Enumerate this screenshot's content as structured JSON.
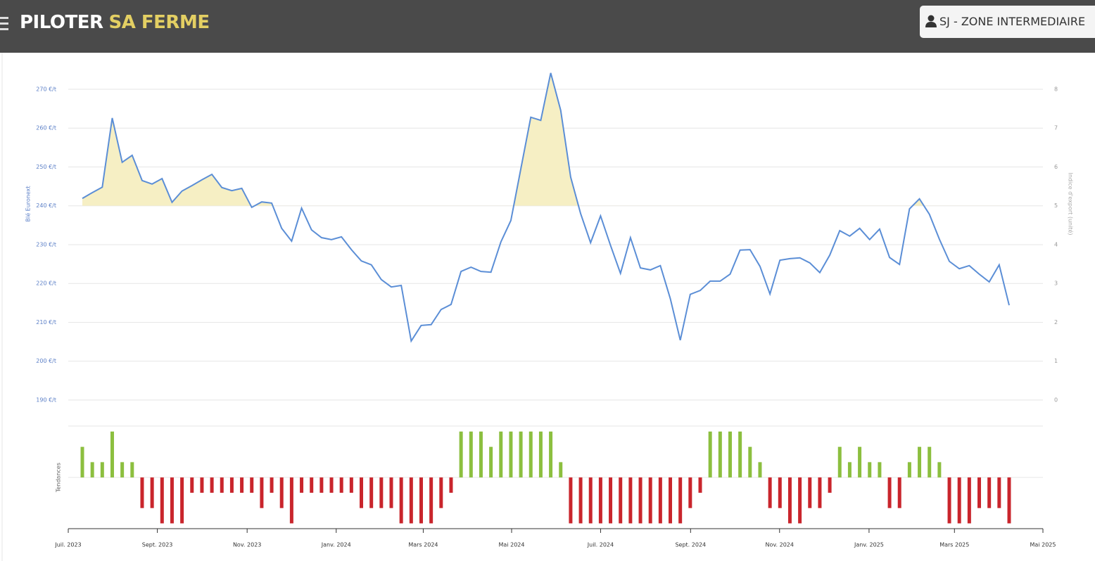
{
  "header": {
    "brand_main": "PILOTER",
    "brand_accent": "SA FERME",
    "user_zone": "SJ - ZONE INTERMEDIAIRE"
  },
  "chart_data": [
    {
      "type": "line",
      "y_label": "Blé Euronext",
      "y2_label": "Indice d'export (unité)",
      "color": "#5b8ed6",
      "fill_above": 240,
      "fill_color": "#f6efc4",
      "grid": true,
      "x": [
        0,
        1,
        2,
        3,
        4,
        5,
        6,
        7,
        8,
        9,
        10,
        11,
        12,
        13,
        14,
        15,
        16,
        17,
        18,
        19,
        20,
        21,
        22,
        23,
        24,
        25,
        26,
        27,
        28,
        29,
        30,
        31,
        32,
        33,
        34,
        35,
        36,
        37,
        38,
        39,
        40,
        41,
        42,
        43,
        44,
        45,
        46,
        47,
        48,
        49,
        50,
        51,
        52,
        53,
        54,
        55,
        56,
        57,
        58,
        59,
        60,
        61,
        62,
        63,
        64,
        65,
        66,
        67,
        68,
        69,
        70,
        71,
        72,
        73,
        74,
        75,
        76,
        77,
        78,
        79,
        80,
        81,
        82,
        83,
        84,
        85,
        86,
        87,
        88,
        89,
        90,
        91,
        92,
        93
      ],
      "values": [
        241.9,
        243.4,
        244.8,
        262.6,
        251.2,
        253.0,
        246.5,
        245.6,
        247.0,
        240.9,
        243.8,
        245.2,
        246.7,
        248.1,
        244.7,
        243.9,
        244.5,
        239.6,
        241.0,
        240.7,
        234.2,
        230.9,
        239.4,
        233.8,
        231.8,
        231.3,
        232.0,
        228.7,
        225.8,
        224.8,
        221.0,
        219.1,
        219.5,
        205.2,
        209.2,
        209.4,
        213.3,
        214.6,
        223.1,
        224.2,
        223.1,
        222.9,
        230.7,
        236.2,
        249.5,
        262.8,
        262.0,
        274.2,
        264.6,
        247.4,
        238.0,
        230.5,
        237.4,
        229.8,
        222.6,
        231.8,
        224.0,
        223.5,
        224.6,
        216.1,
        205.4,
        217.2,
        218.2,
        220.6,
        220.6,
        222.4,
        228.6,
        228.7,
        224.4,
        217.3,
        226.0,
        226.4,
        226.6,
        225.3,
        222.8,
        227.3,
        233.6,
        232.2,
        234.2,
        231.3,
        234.0,
        226.7,
        224.9,
        239.2,
        241.8,
        237.8,
        231.4,
        225.7,
        223.8,
        224.6,
        222.4,
        220.4,
        224.8,
        214.4
      ],
      "xlim": [
        -0.35,
        95.5
      ],
      "ylim": [
        190,
        277
      ],
      "yticks": [
        {
          "value": 190,
          "label": "190 €/t"
        },
        {
          "value": 200,
          "label": "200 €/t"
        },
        {
          "value": 210,
          "label": "210 €/t"
        },
        {
          "value": 220,
          "label": "220 €/t"
        },
        {
          "value": 230,
          "label": "230 €/t"
        },
        {
          "value": 240,
          "label": "240 €/t"
        },
        {
          "value": 250,
          "label": "250 €/t"
        },
        {
          "value": 260,
          "label": "260 €/t"
        },
        {
          "value": 270,
          "label": "270 €/t"
        }
      ],
      "y2lim": [
        0,
        8.7
      ],
      "y2ticks": [
        0,
        1,
        2,
        3,
        4,
        5,
        6,
        7,
        8
      ]
    },
    {
      "type": "bar",
      "y_label": "Tendances",
      "up_color": "#8cbf3f",
      "down_color": "#c9252c",
      "x": [
        0,
        1,
        2,
        3,
        4,
        5,
        6,
        7,
        8,
        9,
        10,
        11,
        12,
        13,
        14,
        15,
        16,
        17,
        18,
        19,
        20,
        21,
        22,
        23,
        24,
        25,
        26,
        27,
        28,
        29,
        30,
        31,
        32,
        33,
        34,
        35,
        36,
        37,
        38,
        39,
        40,
        41,
        42,
        43,
        44,
        45,
        46,
        47,
        48,
        49,
        50,
        51,
        52,
        53,
        54,
        55,
        56,
        57,
        58,
        59,
        60,
        61,
        62,
        63,
        64,
        65,
        66,
        67,
        68,
        69,
        70,
        71,
        72,
        73,
        74,
        75,
        76,
        77,
        78,
        79,
        80,
        81,
        82,
        83,
        84,
        85,
        86,
        87,
        88,
        89,
        90,
        91,
        92,
        93
      ],
      "values": [
        2,
        1,
        1,
        3,
        1,
        1,
        -2,
        -2,
        -3,
        -3,
        -3,
        -1,
        -1,
        -1,
        -1,
        -1,
        -1,
        -1,
        -2,
        -1,
        -2,
        -3,
        -1,
        -1,
        -1,
        -1,
        -1,
        -1,
        -2,
        -2,
        -2,
        -2,
        -3,
        -3,
        -3,
        -3,
        -2,
        -1,
        3,
        3,
        3,
        2,
        3,
        3,
        3,
        3,
        3,
        3,
        1,
        -3,
        -3,
        -3,
        -3,
        -3,
        -3,
        -3,
        -3,
        -3,
        -3,
        -3,
        -3,
        -2,
        -1,
        3,
        3,
        3,
        3,
        2,
        1,
        -2,
        -2,
        -3,
        -3,
        -2,
        -2,
        -1,
        2,
        1,
        2,
        1,
        1,
        -2,
        -2,
        1,
        2,
        2,
        1,
        -3,
        -3,
        -3,
        -2,
        -2,
        -2,
        -3
      ],
      "xlim": [
        -0.35,
        95.5
      ],
      "ylim": [
        -3.3,
        3.36
      ],
      "xticks": [
        {
          "value": -0.35,
          "label": "Juil. 2023"
        },
        {
          "value": 8.41,
          "label": "Sept. 2023"
        },
        {
          "value": 17.24,
          "label": "Nov. 2023"
        },
        {
          "value": 26.0,
          "label": "Janv. 2024"
        },
        {
          "value": 34.56,
          "label": "Mars 2024"
        },
        {
          "value": 43.25,
          "label": "Mai 2024"
        },
        {
          "value": 52.0,
          "label": "Juil. 2024"
        },
        {
          "value": 60.85,
          "label": "Sept. 2024"
        },
        {
          "value": 69.6,
          "label": "Nov. 2024"
        },
        {
          "value": 78.4,
          "label": "Janv. 2025"
        },
        {
          "value": 86.8,
          "label": "Mars 2025"
        },
        {
          "value": 95.5,
          "label": "Mai 2025"
        }
      ]
    }
  ]
}
